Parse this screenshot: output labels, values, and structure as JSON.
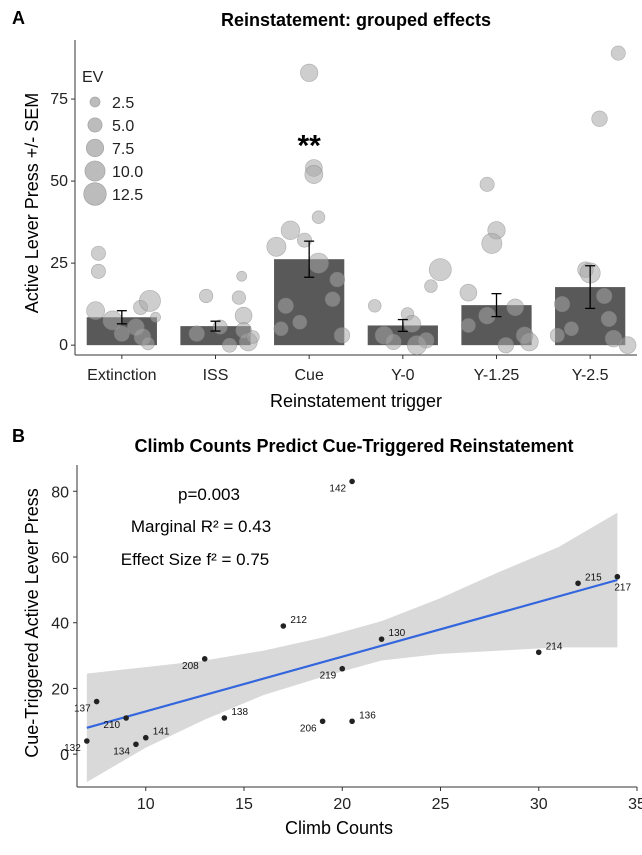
{
  "chart_data": [
    {
      "panel": "A",
      "type": "bar",
      "title": "Reinstatement: grouped effects",
      "xlabel": "Reinstatement trigger",
      "ylabel": "Active Lever Press +/- SEM",
      "categories": [
        "Extinction",
        "ISS",
        "Cue",
        "Y-0",
        "Y-1.25",
        "Y-2.5"
      ],
      "values": [
        8.5,
        5.8,
        26.2,
        6.0,
        12.2,
        17.7
      ],
      "sem": [
        2.0,
        1.5,
        5.5,
        1.8,
        3.5,
        6.5
      ],
      "ylim": [
        -3,
        93
      ],
      "yticks": [
        0,
        25,
        50,
        75
      ],
      "annotation": {
        "category": "Cue",
        "y": 62,
        "text": "**"
      },
      "legend": {
        "title": "EV",
        "placement": "top-left",
        "sizes": [
          2.5,
          5.0,
          7.5,
          10.0,
          12.5
        ],
        "labels": [
          "2.5",
          "5.0",
          "7.5",
          "10.0",
          "12.5"
        ]
      },
      "points": [
        {
          "category": "Extinction",
          "dx": -0.25,
          "y": 28,
          "ev": 5.0
        },
        {
          "category": "Extinction",
          "dx": -0.25,
          "y": 22.5,
          "ev": 5.0
        },
        {
          "category": "Extinction",
          "dx": -0.28,
          "y": 10.5,
          "ev": 8.0
        },
        {
          "category": "Extinction",
          "dx": -0.1,
          "y": 7.5,
          "ev": 9.0
        },
        {
          "category": "Extinction",
          "dx": 0.2,
          "y": 11.5,
          "ev": 5.0
        },
        {
          "category": "Extinction",
          "dx": 0.3,
          "y": 13.5,
          "ev": 11.0
        },
        {
          "category": "Extinction",
          "dx": 0.15,
          "y": 5.5,
          "ev": 7.0
        },
        {
          "category": "Extinction",
          "dx": 0.22,
          "y": 2.5,
          "ev": 7.0
        },
        {
          "category": "Extinction",
          "dx": 0.28,
          "y": 0.5,
          "ev": 4.0
        },
        {
          "category": "Extinction",
          "dx": 0.0,
          "y": 3.5,
          "ev": 6.0
        },
        {
          "category": "Extinction",
          "dx": 0.36,
          "y": 8.5,
          "ev": 2.5
        },
        {
          "category": "ISS",
          "dx": -0.1,
          "y": 15,
          "ev": 4.5
        },
        {
          "category": "ISS",
          "dx": 0.25,
          "y": 14.5,
          "ev": 4.5
        },
        {
          "category": "ISS",
          "dx": 0.28,
          "y": 21,
          "ev": 2.5
        },
        {
          "category": "ISS",
          "dx": 0.3,
          "y": 9,
          "ev": 7.0
        },
        {
          "category": "ISS",
          "dx": -0.2,
          "y": 3.5,
          "ev": 6.0
        },
        {
          "category": "ISS",
          "dx": 0.05,
          "y": 5.5,
          "ev": 5.0
        },
        {
          "category": "ISS",
          "dx": 0.3,
          "y": 4.5,
          "ev": 6.0
        },
        {
          "category": "ISS",
          "dx": 0.35,
          "y": 1,
          "ev": 8.0
        },
        {
          "category": "ISS",
          "dx": 0.15,
          "y": 0,
          "ev": 5.0
        },
        {
          "category": "ISS",
          "dx": 0.4,
          "y": 2.5,
          "ev": 4.0
        },
        {
          "category": "Cue",
          "dx": 0.0,
          "y": 83,
          "ev": 7.5
        },
        {
          "category": "Cue",
          "dx": 0.05,
          "y": 54,
          "ev": 7.0
        },
        {
          "category": "Cue",
          "dx": 0.05,
          "y": 52,
          "ev": 8.0
        },
        {
          "category": "Cue",
          "dx": 0.1,
          "y": 39,
          "ev": 4.0
        },
        {
          "category": "Cue",
          "dx": -0.35,
          "y": 30,
          "ev": 9.0
        },
        {
          "category": "Cue",
          "dx": -0.2,
          "y": 35,
          "ev": 8.5
        },
        {
          "category": "Cue",
          "dx": -0.05,
          "y": 32,
          "ev": 5.0
        },
        {
          "category": "Cue",
          "dx": 0.1,
          "y": 25,
          "ev": 10.0
        },
        {
          "category": "Cue",
          "dx": -0.25,
          "y": 12,
          "ev": 6.0
        },
        {
          "category": "Cue",
          "dx": 0.3,
          "y": 20,
          "ev": 5.5
        },
        {
          "category": "Cue",
          "dx": 0.25,
          "y": 14,
          "ev": 5.5
        },
        {
          "category": "Cue",
          "dx": -0.1,
          "y": 7,
          "ev": 5.0
        },
        {
          "category": "Cue",
          "dx": -0.3,
          "y": 5,
          "ev": 5.0
        },
        {
          "category": "Cue",
          "dx": 0.35,
          "y": 3,
          "ev": 6.0
        },
        {
          "category": "Y-0",
          "dx": -0.3,
          "y": 12,
          "ev": 4.0
        },
        {
          "category": "Y-0",
          "dx": 0.05,
          "y": 9.5,
          "ev": 4.0
        },
        {
          "category": "Y-0",
          "dx": 0.1,
          "y": 6.5,
          "ev": 7.0
        },
        {
          "category": "Y-0",
          "dx": -0.2,
          "y": 3,
          "ev": 8.0
        },
        {
          "category": "Y-0",
          "dx": 0.25,
          "y": 1.5,
          "ev": 6.0
        },
        {
          "category": "Y-0",
          "dx": 0.3,
          "y": 18,
          "ev": 4.0
        },
        {
          "category": "Y-0",
          "dx": 0.4,
          "y": 23,
          "ev": 12.0
        },
        {
          "category": "Y-0",
          "dx": -0.1,
          "y": 1,
          "ev": 6.0
        },
        {
          "category": "Y-0",
          "dx": 0.15,
          "y": 0,
          "ev": 9.0
        },
        {
          "category": "Y-1.25",
          "dx": -0.1,
          "y": 49,
          "ev": 5.0
        },
        {
          "category": "Y-1.25",
          "dx": 0.0,
          "y": 35,
          "ev": 7.5
        },
        {
          "category": "Y-1.25",
          "dx": -0.05,
          "y": 31,
          "ev": 10.0
        },
        {
          "category": "Y-1.25",
          "dx": -0.3,
          "y": 16,
          "ev": 7.0
        },
        {
          "category": "Y-1.25",
          "dx": -0.1,
          "y": 9,
          "ev": 7.0
        },
        {
          "category": "Y-1.25",
          "dx": 0.2,
          "y": 11.5,
          "ev": 7.0
        },
        {
          "category": "Y-1.25",
          "dx": 0.3,
          "y": 3,
          "ev": 7.0
        },
        {
          "category": "Y-1.25",
          "dx": -0.3,
          "y": 6,
          "ev": 5.0
        },
        {
          "category": "Y-1.25",
          "dx": 0.35,
          "y": 1,
          "ev": 8.0
        },
        {
          "category": "Y-1.25",
          "dx": 0.1,
          "y": 0,
          "ev": 6.0
        },
        {
          "category": "Y-2.5",
          "dx": 0.3,
          "y": 89,
          "ev": 5.0
        },
        {
          "category": "Y-2.5",
          "dx": 0.1,
          "y": 69,
          "ev": 6.0
        },
        {
          "category": "Y-2.5",
          "dx": -0.05,
          "y": 23,
          "ev": 6.0
        },
        {
          "category": "Y-2.5",
          "dx": 0.0,
          "y": 22,
          "ev": 10.0
        },
        {
          "category": "Y-2.5",
          "dx": 0.15,
          "y": 15,
          "ev": 6.0
        },
        {
          "category": "Y-2.5",
          "dx": -0.3,
          "y": 12.5,
          "ev": 6.0
        },
        {
          "category": "Y-2.5",
          "dx": 0.2,
          "y": 8,
          "ev": 6.0
        },
        {
          "category": "Y-2.5",
          "dx": -0.2,
          "y": 5,
          "ev": 5.0
        },
        {
          "category": "Y-2.5",
          "dx": 0.25,
          "y": 2,
          "ev": 7.0
        },
        {
          "category": "Y-2.5",
          "dx": 0.4,
          "y": 0,
          "ev": 7.0
        },
        {
          "category": "Y-2.5",
          "dx": -0.35,
          "y": 3,
          "ev": 5.0
        }
      ]
    },
    {
      "panel": "B",
      "type": "scatter",
      "title": "Climb Counts Predict Cue-Triggered Reinstatement",
      "xlabel": "Climb Counts",
      "ylabel": "Cue-Triggered Active Lever Press",
      "xlim": [
        6.5,
        35
      ],
      "ylim": [
        -10,
        88
      ],
      "xticks": [
        10,
        15,
        20,
        25,
        30,
        35
      ],
      "yticks": [
        0,
        20,
        40,
        60,
        80
      ],
      "annotations": {
        "p": "p=0.003",
        "marginal_r2": "Marginal R² = 0.43",
        "effect_size": "Effect Size f² = 0.75"
      },
      "fit_line": {
        "x": [
          7,
          34
        ],
        "y": [
          8,
          53
        ]
      },
      "confidence_band": {
        "x": [
          7,
          10,
          13,
          16,
          19,
          22,
          25,
          28,
          31,
          34
        ],
        "lo": [
          -8.5,
          2.0,
          10.5,
          18.0,
          23.5,
          28.5,
          30.5,
          31.5,
          32.5,
          32.5
        ],
        "hi": [
          24.5,
          26.5,
          28.5,
          31.5,
          35.5,
          40.5,
          47.5,
          55.5,
          63.0,
          73.5
        ]
      },
      "points": [
        {
          "id": "142",
          "x": 20.5,
          "y": 83,
          "label_side": "left"
        },
        {
          "id": "215",
          "x": 32,
          "y": 52,
          "label_side": "right"
        },
        {
          "id": "217",
          "x": 34,
          "y": 54,
          "label_side": "below-right"
        },
        {
          "id": "212",
          "x": 17,
          "y": 39,
          "label_side": "right"
        },
        {
          "id": "130",
          "x": 22,
          "y": 35,
          "label_side": "right"
        },
        {
          "id": "214",
          "x": 30,
          "y": 31,
          "label_side": "right"
        },
        {
          "id": "208",
          "x": 13,
          "y": 29,
          "label_side": "left"
        },
        {
          "id": "219",
          "x": 20,
          "y": 26,
          "label_side": "left"
        },
        {
          "id": "137",
          "x": 7.5,
          "y": 16,
          "label_side": "left"
        },
        {
          "id": "210",
          "x": 9,
          "y": 11,
          "label_side": "left"
        },
        {
          "id": "138",
          "x": 14,
          "y": 11,
          "label_side": "right"
        },
        {
          "id": "206",
          "x": 19,
          "y": 10,
          "label_side": "left"
        },
        {
          "id": "136",
          "x": 20.5,
          "y": 10,
          "label_side": "right"
        },
        {
          "id": "141",
          "x": 10,
          "y": 5,
          "label_side": "right"
        },
        {
          "id": "134",
          "x": 9.5,
          "y": 3,
          "label_side": "left"
        },
        {
          "id": "132",
          "x": 7,
          "y": 4,
          "label_side": "left"
        }
      ]
    }
  ],
  "colors": {
    "bar": "#595959",
    "point_fill": "#a6a6a6",
    "fit_line": "#3366dd",
    "band": "#d9d9d9",
    "scatter_point": "#222222"
  }
}
